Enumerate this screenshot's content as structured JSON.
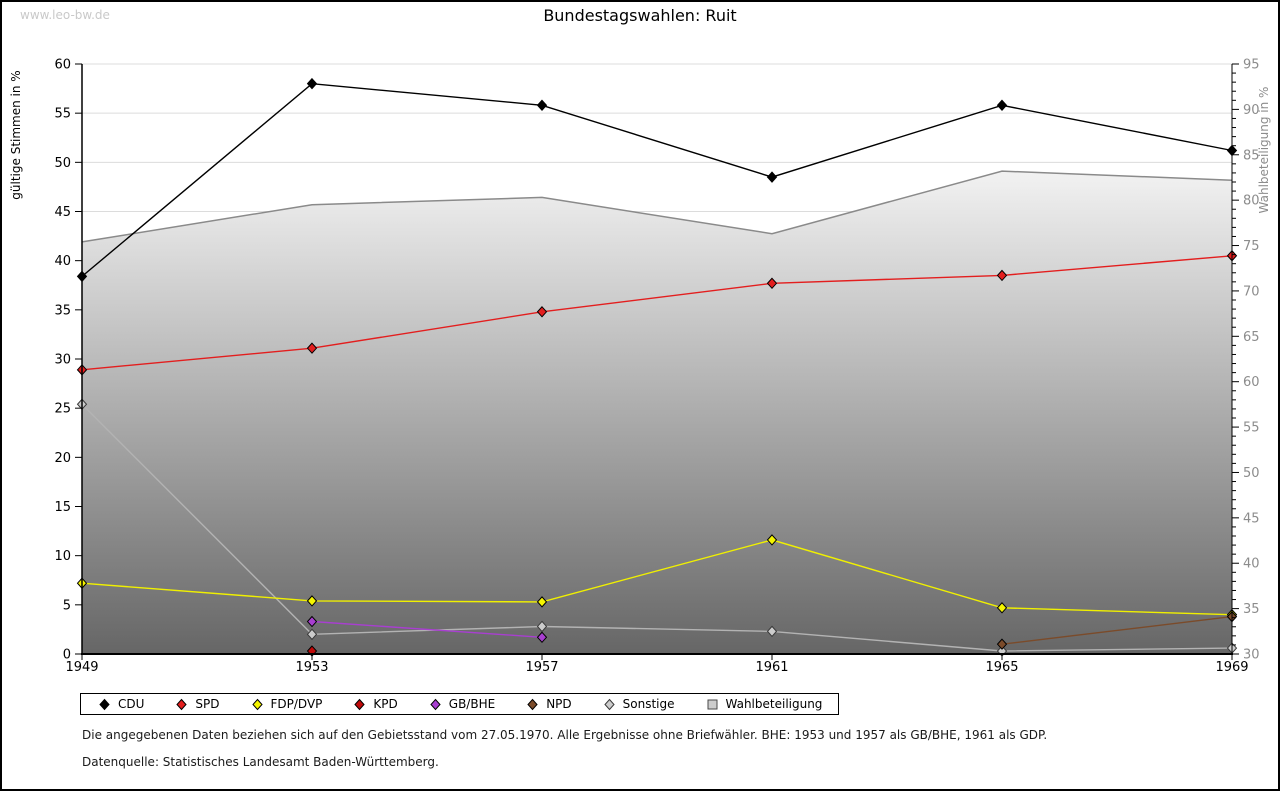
{
  "page": {
    "watermark": "www.leo-bw.de",
    "title": "Bundestagswahlen: Ruit"
  },
  "chart_data": {
    "type": "line",
    "title": "Bundestagswahlen: Ruit",
    "x": [
      "1949",
      "1953",
      "1957",
      "1961",
      "1965",
      "1969"
    ],
    "left_axis": {
      "label": "gültige Stimmen in %",
      "min": 0,
      "max": 60,
      "tick_step": 5
    },
    "right_axis": {
      "label": "Wahlbeteiligung in %",
      "min": 30,
      "max": 95,
      "tick_step": 5,
      "minor_tick_step": 1
    },
    "grid": true,
    "legend_position": "bottom",
    "series": [
      {
        "name": "Sonstige",
        "axis": "left",
        "style": "line",
        "color": "#b3b3b3",
        "marker_fill": "#cccccc",
        "marker_stroke": "#3a3a3a",
        "values": [
          25.4,
          2.0,
          2.8,
          2.3,
          0.3,
          0.6
        ]
      },
      {
        "name": "GB/BHE",
        "axis": "left",
        "style": "line",
        "color": "#a83fd0",
        "marker_fill": "#a83fd0",
        "marker_stroke": "#000000",
        "values": [
          null,
          3.3,
          1.7,
          null,
          null,
          null
        ]
      },
      {
        "name": "KPD",
        "axis": "left",
        "style": "line",
        "color": "#c00a0a",
        "marker_fill": "#c00a0a",
        "marker_stroke": "#000000",
        "values": [
          null,
          0.3,
          null,
          null,
          null,
          null
        ]
      },
      {
        "name": "FDP/DVP",
        "axis": "left",
        "style": "line",
        "color": "#f0f000",
        "marker_fill": "#f5f500",
        "marker_stroke": "#000000",
        "values": [
          7.2,
          5.4,
          5.3,
          11.6,
          4.7,
          4.0
        ]
      },
      {
        "name": "NPD",
        "axis": "left",
        "style": "line",
        "color": "#7b4b2a",
        "marker_fill": "#7b4b2a",
        "marker_stroke": "#000000",
        "values": [
          null,
          null,
          null,
          null,
          1.0,
          3.8
        ]
      },
      {
        "name": "SPD",
        "axis": "left",
        "style": "line",
        "color": "#e31e1e",
        "marker_fill": "#e31e1e",
        "marker_stroke": "#000000",
        "values": [
          28.9,
          31.1,
          34.8,
          37.7,
          38.5,
          40.5
        ]
      },
      {
        "name": "CDU",
        "axis": "left",
        "style": "line",
        "color": "#000000",
        "marker_fill": "#000000",
        "marker_stroke": "#000000",
        "values": [
          38.4,
          58.0,
          55.8,
          48.5,
          55.8,
          51.2
        ]
      },
      {
        "name": "Wahlbeteiligung",
        "axis": "right",
        "style": "area",
        "color": "#8a8a8a",
        "fill_top": "#f2f2f2",
        "fill_bottom": "#666666",
        "values": [
          75.4,
          79.5,
          80.3,
          76.3,
          83.2,
          82.2
        ]
      }
    ],
    "legend_order": [
      "CDU",
      "SPD",
      "FDP/DVP",
      "KPD",
      "GB/BHE",
      "NPD",
      "Sonstige",
      "Wahlbeteiligung"
    ]
  },
  "footnotes": [
    "Die angegebenen Daten beziehen sich auf den Gebietsstand vom 27.05.1970. Alle Ergebnisse ohne Briefwähler. BHE: 1953 und 1957 als GB/BHE, 1961 als GDP.",
    "Datenquelle: Statistisches Landesamt Baden-Württemberg."
  ]
}
